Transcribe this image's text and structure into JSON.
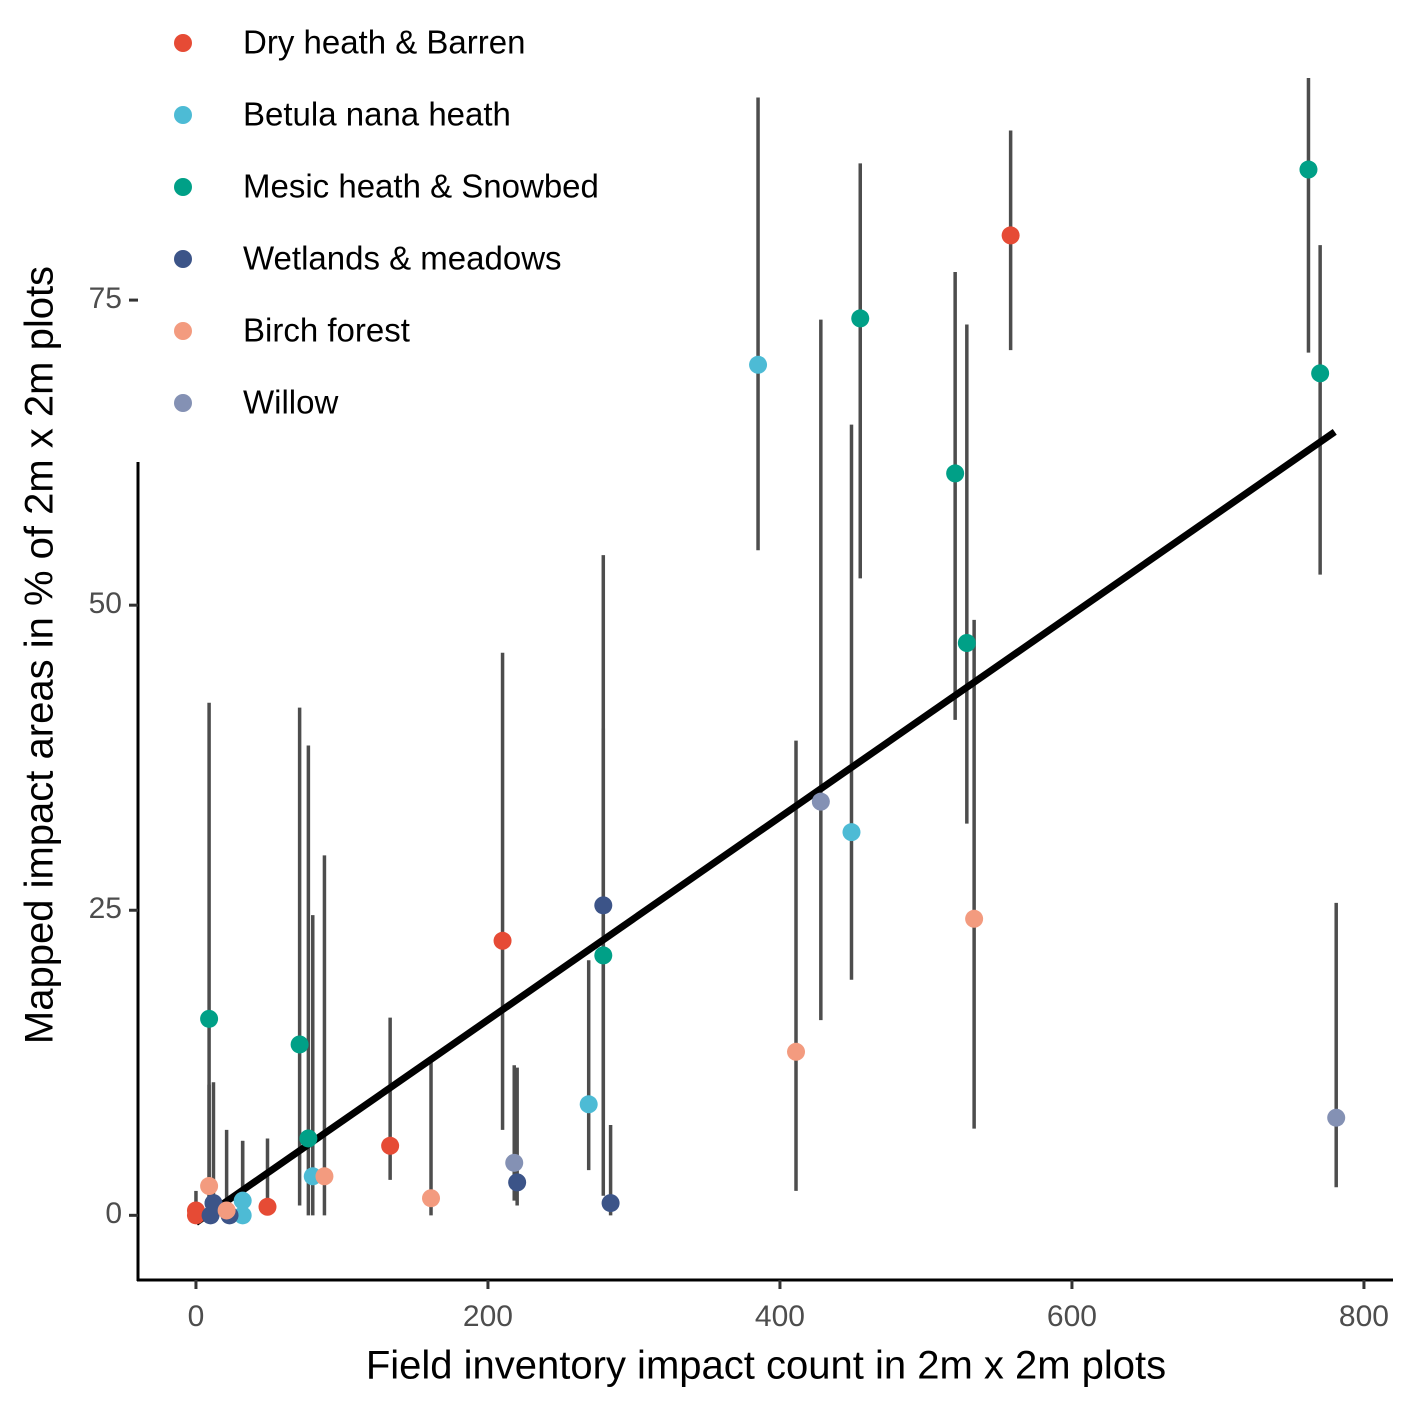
{
  "chart_data": {
    "type": "scatter",
    "x_label": "Field inventory impact count in 2m x 2m plots",
    "y_label": "Mapped impact areas in % of 2m x 2m plots",
    "xlim": [
      -39.7,
      819.9
    ],
    "ylim": [
      -5.3,
      93.2
    ],
    "xticks": [
      0,
      200,
      400,
      600,
      800
    ],
    "yticks": [
      0,
      25,
      50,
      75
    ],
    "legend": "top-left",
    "series": [
      {
        "name": "Dry heath & Barren",
        "color": "#E64B35",
        "x": [
          558,
          210,
          133,
          49,
          0,
          0
        ],
        "values": [
          80.3,
          22.5,
          5.7,
          0.7,
          0.4,
          0
        ],
        "err_low": [
          70.9,
          7.0,
          2.9,
          0,
          0,
          0
        ],
        "err_high": [
          88.9,
          46.1,
          16.2,
          6.3,
          2,
          0
        ]
      },
      {
        "name": "Betula nana heath",
        "color": "#4DBBD5",
        "x": [
          385,
          449,
          269,
          80,
          32,
          32
        ],
        "values": [
          69.7,
          31.4,
          9.1,
          3.2,
          0,
          1.2
        ],
        "err_low": [
          54.5,
          19.3,
          3.7,
          0,
          0,
          0
        ],
        "err_high": [
          91.6,
          64.8,
          20.9,
          24.6,
          6.1,
          6.1
        ]
      },
      {
        "name": "Mesic heath & Snowbed",
        "color": "#00A087",
        "x": [
          762,
          770,
          455,
          520,
          528,
          279,
          71,
          77,
          9
        ],
        "values": [
          85.7,
          69.0,
          73.5,
          60.8,
          46.9,
          21.3,
          14.0,
          6.3,
          16.1
        ],
        "err_low": [
          70.7,
          52.5,
          52.2,
          40.6,
          32.1,
          7.8,
          0.8,
          0,
          0.8
        ],
        "err_high": [
          93.2,
          79.5,
          86.2,
          77.3,
          73,
          39.9,
          41.6,
          38.5,
          42
        ]
      },
      {
        "name": "Wetlands & meadows",
        "color": "#3C5488",
        "x": [
          279,
          220,
          284,
          12,
          23,
          10
        ],
        "values": [
          25.4,
          2.7,
          1.0,
          1.0,
          0,
          0
        ],
        "err_low": [
          1.6,
          0.8,
          0,
          0,
          0,
          0
        ],
        "err_high": [
          54.1,
          12.1,
          7.4,
          10.9,
          0,
          0
        ]
      },
      {
        "name": "Birch forest",
        "color": "#F39B7F",
        "x": [
          533,
          411,
          161,
          88,
          9,
          21
        ],
        "values": [
          24.3,
          13.4,
          1.4,
          3.2,
          2.4,
          0.4
        ],
        "err_low": [
          7.1,
          2.0,
          0,
          0,
          0,
          0
        ],
        "err_high": [
          48.8,
          38.9,
          12.7,
          29.5,
          10.7,
          7.0
        ]
      },
      {
        "name": "Willow",
        "color": "#8491B4",
        "x": [
          428,
          781,
          218
        ],
        "values": [
          33.9,
          8.0,
          4.3
        ],
        "err_low": [
          16.0,
          2.3,
          1.2
        ],
        "err_high": [
          73.4,
          25.6,
          12.3
        ]
      }
    ],
    "fit_line": {
      "x": [
        0,
        780
      ],
      "y": [
        -0.6,
        64.2
      ],
      "color": "#000000"
    }
  }
}
